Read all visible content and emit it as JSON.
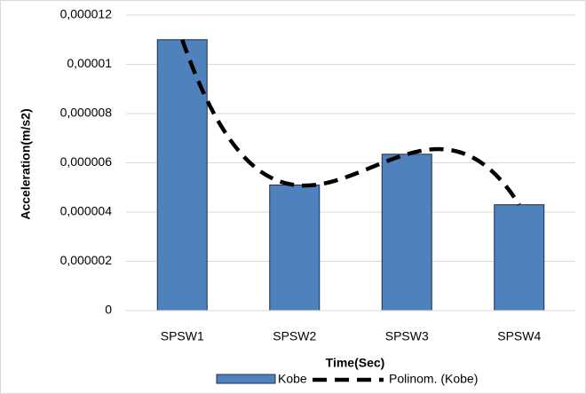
{
  "chart_data": {
    "type": "bar",
    "categories": [
      "SPSW1",
      "SPSW2",
      "SPSW3",
      "SPSW4"
    ],
    "series": [
      {
        "name": "Kobe",
        "color": "#4f81bd",
        "values": [
          1.1e-05,
          5.1e-06,
          6.35e-06,
          4.3e-06
        ]
      }
    ],
    "trendline": {
      "name": "Polinom. (Kobe)",
      "color": "#000000",
      "kind": "polynomial"
    },
    "x_label": "Time(Sec)",
    "y_label": "Acceleration(m/s2)",
    "ylim": [
      0,
      1.2e-05
    ],
    "yticks": [
      0,
      {
        "value": 2e-06,
        "label": "0,000002"
      },
      {
        "value": 4e-06,
        "label": "0,000004"
      },
      {
        "value": 6e-06,
        "label": "0,000006"
      },
      {
        "value": 8e-06,
        "label": "0,000008"
      },
      {
        "value": 1e-05,
        "label": "0,00001"
      },
      {
        "value": 1.2e-05,
        "label": "0,000012"
      }
    ],
    "grid": true,
    "legend": "bottom"
  }
}
